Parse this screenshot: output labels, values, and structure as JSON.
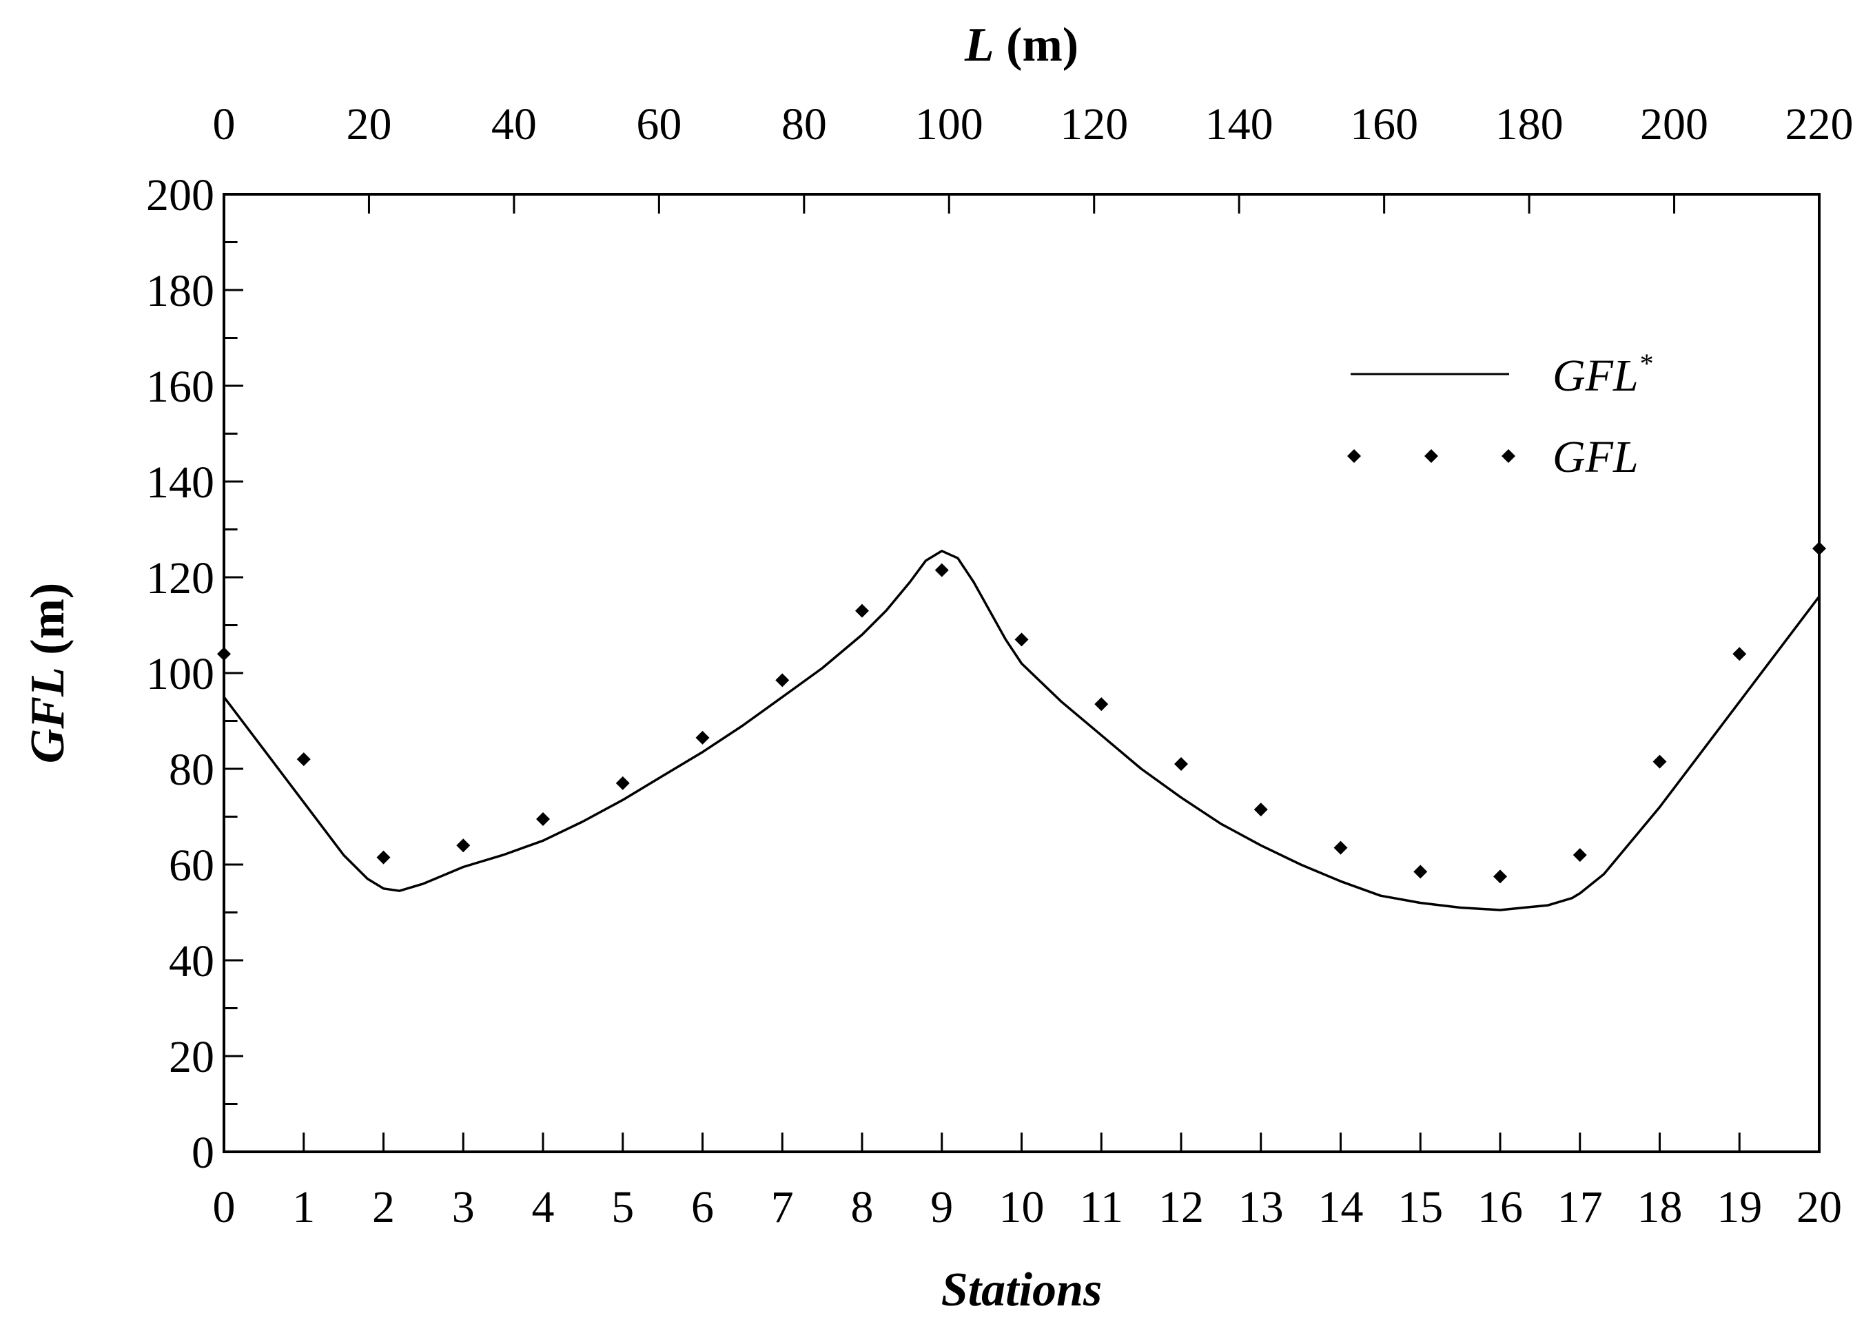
{
  "chart_data": {
    "type": "line",
    "xlabel_bottom": "Stations",
    "xlabel_top": {
      "main": "L",
      "unit": " (m)"
    },
    "ylabel": {
      "main": "GFL",
      "unit": " (m)"
    },
    "xlim": [
      0,
      20
    ],
    "ylim": [
      0,
      200
    ],
    "top_axis": {
      "ticks": [
        0,
        20,
        40,
        60,
        80,
        100,
        120,
        140,
        160,
        180,
        200,
        220
      ],
      "units_per_station": 11
    },
    "x_ticks": [
      0,
      1,
      2,
      3,
      4,
      5,
      6,
      7,
      8,
      9,
      10,
      11,
      12,
      13,
      14,
      15,
      16,
      17,
      18,
      19,
      20
    ],
    "y_ticks": [
      0,
      20,
      40,
      60,
      80,
      100,
      120,
      140,
      160,
      180,
      200
    ],
    "grid": false,
    "legend_position": "top-right",
    "series": [
      {
        "name": "GFL*",
        "name_main": "GFL",
        "name_sup": "*",
        "style": "line",
        "x": [
          0,
          0.5,
          1,
          1.5,
          1.8,
          2,
          2.2,
          2.5,
          3,
          3.5,
          4,
          4.5,
          5,
          5.5,
          6,
          6.5,
          7,
          7.5,
          8,
          8.3,
          8.6,
          8.8,
          9,
          9.2,
          9.4,
          9.6,
          9.8,
          10,
          10.5,
          11,
          11.5,
          12,
          12.5,
          13,
          13.5,
          14,
          14.5,
          15,
          15.5,
          16,
          16.3,
          16.6,
          16.9,
          17,
          17.3,
          17.6,
          18,
          18.5,
          19,
          19.5,
          20
        ],
        "y": [
          95,
          84,
          73,
          62,
          57,
          55,
          54.5,
          56,
          59.5,
          62,
          65,
          69,
          73.5,
          78.5,
          83.5,
          89,
          95,
          101,
          108,
          113,
          119,
          123.5,
          125.5,
          124,
          119,
          113,
          107,
          102,
          94,
          87,
          80,
          74,
          68.5,
          64,
          60,
          56.5,
          53.5,
          52,
          51,
          50.5,
          51,
          51.5,
          53,
          54,
          58,
          64,
          72,
          83,
          94,
          105,
          116
        ]
      },
      {
        "name": "GFL",
        "style": "diamond",
        "x": [
          0,
          1,
          2,
          3,
          4,
          5,
          6,
          7,
          8,
          9,
          10,
          11,
          12,
          13,
          14,
          15,
          16,
          17,
          18,
          19,
          20
        ],
        "y": [
          104,
          82,
          61.5,
          64,
          69.5,
          77,
          86.5,
          98.5,
          113,
          121.5,
          107,
          93.5,
          81,
          71.5,
          63.5,
          58.5,
          57.5,
          62,
          81.5,
          104,
          126
        ]
      }
    ]
  }
}
